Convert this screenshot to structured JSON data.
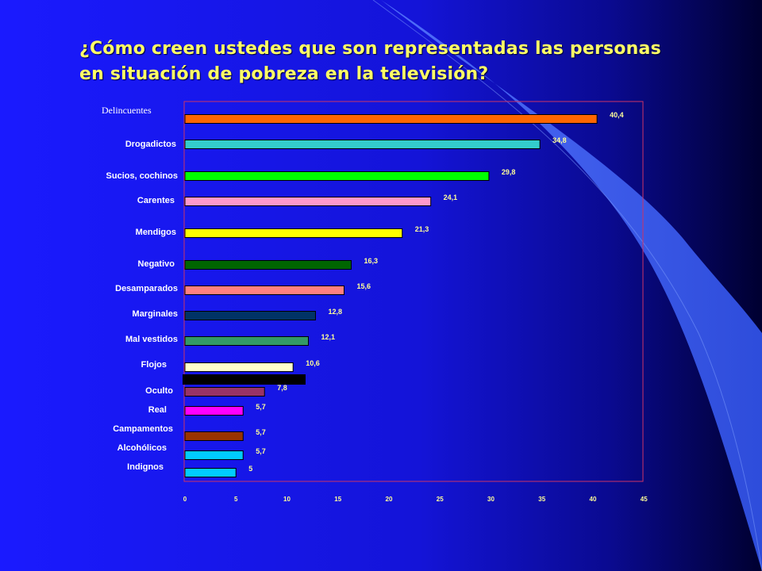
{
  "slide": {
    "title_line1": "¿Cómo creen ustedes que son representadas las personas",
    "title_line2": "en situación de pobreza en la televisión?"
  },
  "colors": {
    "background": "#1414d8",
    "title": "#ffff66",
    "plot_border": "#cc3366",
    "value_labels": "#ffff99"
  },
  "chart_data": {
    "type": "bar",
    "orientation": "horizontal",
    "title": "",
    "xlabel": "",
    "ylabel": "",
    "xlim": [
      0,
      45
    ],
    "x_ticks": [
      0,
      5,
      10,
      15,
      20,
      25,
      30,
      35,
      40,
      45
    ],
    "grid": false,
    "legend": "none",
    "categories": [
      "Delincuentes",
      "Drogadictos",
      "Sucios, cochinos",
      "Carentes",
      "Mendigos",
      "Negativo",
      "Desamparados",
      "Marginales",
      "Mal vestidos",
      "Flojos",
      "Oculto",
      "Real",
      "Campamentos",
      "Alcohólicos",
      "Indignos"
    ],
    "values": [
      40.4,
      34.8,
      29.8,
      24.1,
      21.3,
      16.3,
      15.6,
      12.8,
      12.1,
      10.6,
      7.8,
      5.7,
      5.7,
      5.7,
      5
    ],
    "value_labels": [
      "40,4",
      "34,8",
      "29,8",
      "24,1",
      "21,3",
      "16,3",
      "15,6",
      "12,8",
      "12,1",
      "10,6",
      "7,8",
      "5,7",
      "5,7",
      "5,7",
      "5"
    ],
    "bar_colors": [
      "#ff6600",
      "#33cccc",
      "#00ff00",
      "#ff99cc",
      "#ffff00",
      "#006600",
      "#ff8080",
      "#003366",
      "#339966",
      "#ffffcc",
      "#993366",
      "#ff00ff",
      "#993300",
      "#00ccff",
      "#00ccff"
    ]
  }
}
